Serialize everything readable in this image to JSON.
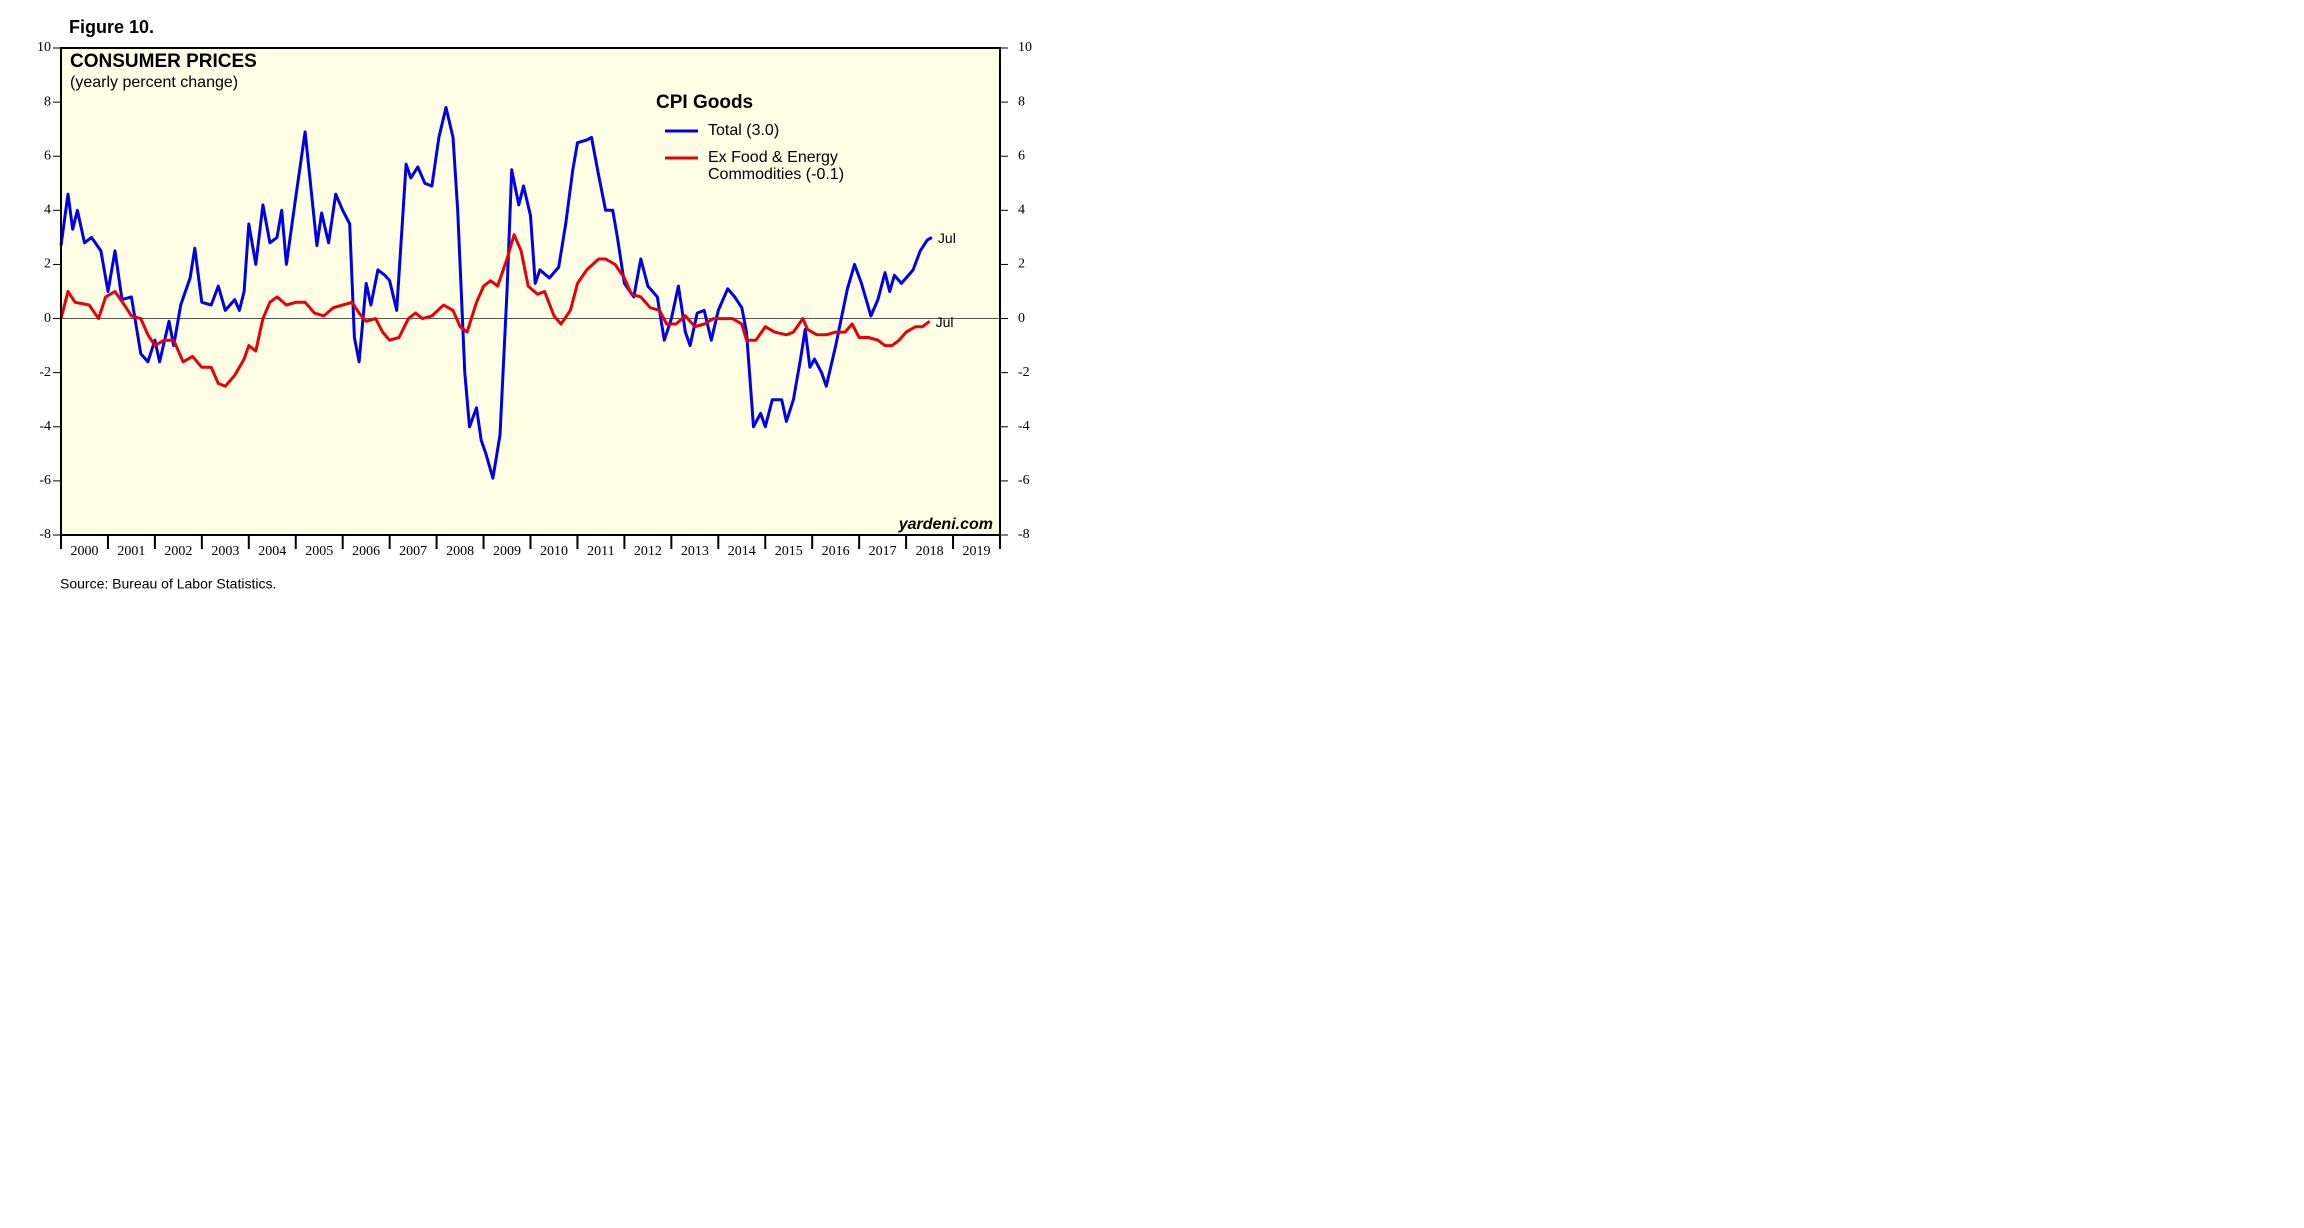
{
  "chart_data": {
    "type": "line",
    "figure_label": "Figure 10.",
    "title": "CONSUMER PRICES",
    "subtitle": "(yearly percent change)",
    "legend_title": "CPI Goods",
    "source": "Source: Bureau of Labor Statistics.",
    "watermark": "yardeni.com",
    "xlim": [
      2000,
      2020
    ],
    "xticks": [
      2000,
      2001,
      2002,
      2003,
      2004,
      2005,
      2006,
      2007,
      2008,
      2009,
      2010,
      2011,
      2012,
      2013,
      2014,
      2015,
      2016,
      2017,
      2018,
      2019
    ],
    "ylim": [
      -8,
      10
    ],
    "yticks": [
      -8,
      -6,
      -4,
      -2,
      0,
      2,
      4,
      6,
      8,
      10
    ],
    "y2lim": [
      -8,
      10
    ],
    "y2ticks": [
      -8,
      -6,
      -4,
      -2,
      0,
      2,
      4,
      6,
      8,
      10
    ],
    "background": "#fefee4",
    "series": [
      {
        "name": "Total (3.0)",
        "color": "#0000e6",
        "end_label": "Jul",
        "x": [
          2000.0,
          2000.15,
          2000.25,
          2000.35,
          2000.5,
          2000.65,
          2000.85,
          2001.0,
          2001.15,
          2001.3,
          2001.5,
          2001.7,
          2001.85,
          2002.0,
          2002.1,
          2002.3,
          2002.4,
          2002.55,
          2002.75,
          2002.85,
          2003.0,
          2003.2,
          2003.35,
          2003.5,
          2003.7,
          2003.8,
          2003.9,
          2004.0,
          2004.15,
          2004.3,
          2004.45,
          2004.6,
          2004.7,
          2004.8,
          2005.0,
          2005.2,
          2005.45,
          2005.55,
          2005.7,
          2005.85,
          2006.0,
          2006.15,
          2006.25,
          2006.35,
          2006.5,
          2006.6,
          2006.75,
          2006.9,
          2007.0,
          2007.15,
          2007.35,
          2007.45,
          2007.6,
          2007.75,
          2007.9,
          2008.05,
          2008.2,
          2008.35,
          2008.45,
          2008.6,
          2008.7,
          2008.85,
          2008.95,
          2009.05,
          2009.2,
          2009.35,
          2009.5,
          2009.6,
          2009.75,
          2009.85,
          2010.0,
          2010.1,
          2010.2,
          2010.4,
          2010.6,
          2010.75,
          2010.9,
          2011.0,
          2011.2,
          2011.3,
          2011.45,
          2011.6,
          2011.75,
          2011.85,
          2012.0,
          2012.2,
          2012.35,
          2012.5,
          2012.7,
          2012.85,
          2013.0,
          2013.15,
          2013.3,
          2013.4,
          2013.55,
          2013.7,
          2013.85,
          2014.0,
          2014.2,
          2014.35,
          2014.5,
          2014.6,
          2014.75,
          2014.9,
          2015.0,
          2015.15,
          2015.35,
          2015.45,
          2015.6,
          2015.75,
          2015.85,
          2015.95,
          2016.05,
          2016.2,
          2016.3,
          2016.5,
          2016.75,
          2016.9,
          2017.05,
          2017.25,
          2017.4,
          2017.55,
          2017.65,
          2017.75,
          2017.9,
          2018.0,
          2018.15,
          2018.3,
          2018.45,
          2018.55
        ],
        "values": [
          2.7,
          4.6,
          3.3,
          4.0,
          2.8,
          3.0,
          2.5,
          1.0,
          2.5,
          0.7,
          0.8,
          -1.3,
          -1.6,
          -0.8,
          -1.6,
          -0.1,
          -1.0,
          0.5,
          1.5,
          2.6,
          0.6,
          0.5,
          1.2,
          0.3,
          0.7,
          0.3,
          1.0,
          3.5,
          2.0,
          4.2,
          2.8,
          3.0,
          4.0,
          2.0,
          4.5,
          6.9,
          2.7,
          3.9,
          2.8,
          4.6,
          4.0,
          3.5,
          -0.7,
          -1.6,
          1.3,
          0.5,
          1.8,
          1.6,
          1.4,
          0.3,
          5.7,
          5.2,
          5.6,
          5.0,
          4.9,
          6.7,
          7.8,
          6.7,
          4.0,
          -2.0,
          -4.0,
          -3.3,
          -4.5,
          -5.0,
          -5.9,
          -4.3,
          1.0,
          5.5,
          4.2,
          4.9,
          3.8,
          1.3,
          1.8,
          1.5,
          1.9,
          3.5,
          5.5,
          6.5,
          6.6,
          6.7,
          5.3,
          4.0,
          4.0,
          3.0,
          1.3,
          0.8,
          2.2,
          1.2,
          0.8,
          -0.8,
          0.0,
          1.2,
          -0.5,
          -1.0,
          0.2,
          0.3,
          -0.8,
          0.3,
          1.1,
          0.8,
          0.4,
          -0.5,
          -4.0,
          -3.5,
          -4.0,
          -3.0,
          -3.0,
          -3.8,
          -3.0,
          -1.5,
          -0.4,
          -1.8,
          -1.5,
          -2.0,
          -2.5,
          -1.0,
          1.1,
          2.0,
          1.3,
          0.1,
          0.7,
          1.7,
          1.0,
          1.6,
          1.3,
          1.5,
          1.8,
          2.5,
          2.9,
          3.0
        ]
      },
      {
        "name": "Ex Food & Energy Commodities (-0.1)",
        "color": "#e6000a",
        "end_label": "Jul",
        "x": [
          2000.0,
          2000.15,
          2000.3,
          2000.6,
          2000.8,
          2000.95,
          2001.15,
          2001.35,
          2001.5,
          2001.7,
          2001.85,
          2002.0,
          2002.2,
          2002.4,
          2002.6,
          2002.8,
          2003.0,
          2003.2,
          2003.35,
          2003.5,
          2003.7,
          2003.9,
          2004.0,
          2004.15,
          2004.3,
          2004.45,
          2004.6,
          2004.8,
          2005.0,
          2005.2,
          2005.4,
          2005.6,
          2005.8,
          2006.0,
          2006.2,
          2006.35,
          2006.5,
          2006.7,
          2006.85,
          2007.0,
          2007.2,
          2007.4,
          2007.55,
          2007.7,
          2007.9,
          2008.15,
          2008.35,
          2008.5,
          2008.65,
          2008.85,
          2009.0,
          2009.15,
          2009.3,
          2009.5,
          2009.65,
          2009.8,
          2009.95,
          2010.15,
          2010.3,
          2010.5,
          2010.65,
          2010.85,
          2011.0,
          2011.2,
          2011.45,
          2011.6,
          2011.8,
          2012.0,
          2012.15,
          2012.35,
          2012.55,
          2012.75,
          2012.9,
          2013.1,
          2013.3,
          2013.5,
          2013.7,
          2013.9,
          2014.1,
          2014.3,
          2014.5,
          2014.6,
          2014.8,
          2015.0,
          2015.2,
          2015.45,
          2015.6,
          2015.8,
          2015.9,
          2016.1,
          2016.3,
          2016.5,
          2016.7,
          2016.85,
          2017.0,
          2017.2,
          2017.4,
          2017.55,
          2017.7,
          2017.85,
          2018.0,
          2018.2,
          2018.35,
          2018.5
        ],
        "values": [
          0.0,
          1.0,
          0.6,
          0.5,
          0.0,
          0.8,
          1.0,
          0.5,
          0.1,
          0.0,
          -0.6,
          -1.0,
          -0.8,
          -0.8,
          -1.6,
          -1.4,
          -1.8,
          -1.8,
          -2.4,
          -2.5,
          -2.1,
          -1.5,
          -1.0,
          -1.2,
          0.0,
          0.6,
          0.8,
          0.5,
          0.6,
          0.6,
          0.2,
          0.1,
          0.4,
          0.5,
          0.6,
          0.2,
          -0.1,
          0.0,
          -0.5,
          -0.8,
          -0.7,
          0.0,
          0.2,
          0.0,
          0.1,
          0.5,
          0.3,
          -0.3,
          -0.5,
          0.6,
          1.2,
          1.4,
          1.2,
          2.2,
          3.1,
          2.5,
          1.2,
          0.9,
          1.0,
          0.1,
          -0.2,
          0.3,
          1.3,
          1.8,
          2.2,
          2.2,
          2.0,
          1.5,
          0.9,
          0.8,
          0.4,
          0.3,
          -0.2,
          -0.2,
          0.1,
          -0.3,
          -0.2,
          0.0,
          0.0,
          0.0,
          -0.2,
          -0.8,
          -0.8,
          -0.3,
          -0.5,
          -0.6,
          -0.5,
          0.0,
          -0.4,
          -0.6,
          -0.6,
          -0.5,
          -0.5,
          -0.2,
          -0.7,
          -0.7,
          -0.8,
          -1.0,
          -1.0,
          -0.8,
          -0.5,
          -0.3,
          -0.3,
          -0.1
        ]
      }
    ]
  }
}
